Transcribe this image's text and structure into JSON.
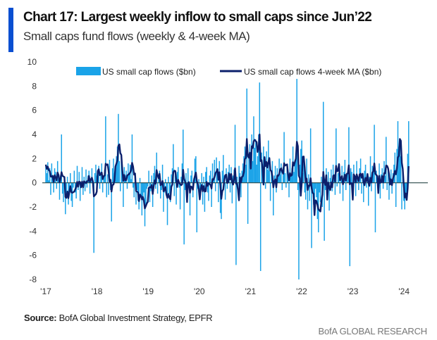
{
  "header": {
    "title": "Chart 17: Largest weekly inflow to small caps since Jun’22",
    "subtitle": "Small caps fund flows (weekly & 4-week MA)"
  },
  "footer": {
    "source_label": "Source:",
    "source_text": " BofA Global Investment Strategy, EPFR",
    "brand": "BofA GLOBAL RESEARCH"
  },
  "colors": {
    "accent": "#0a4fd1",
    "bars": "#1aa3e8",
    "ma_line": "#0b1f6b",
    "zero_line": "#2a4a4a"
  },
  "chart_data": {
    "type": "bar",
    "title": "",
    "xlabel": "",
    "ylabel": "",
    "ylim": [
      -8,
      10
    ],
    "yticks": [
      "10",
      "8",
      "6",
      "4",
      "2",
      "0",
      "-2",
      "-4",
      "-6",
      "-8"
    ],
    "xticks": [
      "'17",
      "'18",
      "'19",
      "'20",
      "'21",
      "'22",
      "'23",
      "'24"
    ],
    "x_start": "2017-01",
    "frequency": "weekly",
    "grid": false,
    "legend_placement": "top",
    "series": [
      {
        "name": "US small cap flows ($bn)",
        "type": "bar",
        "values": [
          1.5,
          0.8,
          1.7,
          0.2,
          1.2,
          -1.0,
          1.6,
          0.5,
          -0.8,
          1.2,
          0.9,
          -0.5,
          1.8,
          0.3,
          -1.4,
          0.6,
          4.0,
          -0.9,
          -1.6,
          0.4,
          -2.6,
          -1.2,
          0.5,
          -1.8,
          -0.6,
          0.8,
          -1.5,
          -2.0,
          -0.4,
          1.0,
          -0.8,
          -1.3,
          1.4,
          -0.6,
          0.9,
          -1.5,
          -0.3,
          1.3,
          -1.0,
          0.5,
          -0.7,
          1.1,
          -0.4,
          0.6,
          1.0,
          -0.9,
          0.4,
          1.2,
          -0.3,
          -5.8,
          0.8,
          1.5,
          0.6,
          1.0,
          1.4,
          -0.5,
          0.9,
          1.6,
          -0.8,
          0.5,
          1.1,
          5.5,
          -1.2,
          0.7,
          -1.0,
          1.9,
          -0.6,
          -3.2,
          1.2,
          2.0,
          0.8,
          1.4,
          2.2,
          3.0,
          5.7,
          1.8,
          -0.7,
          2.4,
          0.9,
          -2.0,
          1.3,
          0.6,
          1.0,
          -0.5,
          1.6,
          0.8,
          1.5,
          0.3,
          4.0,
          -0.4,
          -1.2,
          0.7,
          -1.8,
          -0.6,
          -1.5,
          -2.2,
          0.4,
          -1.0,
          -2.7,
          -1.4,
          -0.8,
          -3.6,
          -1.9,
          -0.5,
          -0.3,
          1.0,
          -1.6,
          -0.7,
          0.6,
          -2.0,
          0.8,
          1.4,
          -0.5,
          2.5,
          -0.9,
          0.4,
          1.0,
          -1.3,
          -0.6,
          1.5,
          -2.4,
          -0.8,
          0.3,
          -1.0,
          -3.5,
          0.5,
          -0.9,
          -1.6,
          0.7,
          1.2,
          3.2,
          -1.1,
          0.6,
          -1.8,
          0.9,
          1.3,
          -0.4,
          -2.2,
          0.5,
          1.6,
          4.4,
          -5.1,
          -0.6,
          0.8,
          -1.5,
          1.2,
          -0.3,
          -2.7,
          0.6,
          1.0,
          -1.2,
          0.4,
          2.0,
          2.2,
          -4.1,
          -0.5,
          0.3,
          -1.2,
          -0.6,
          0.8,
          -1.8,
          0.5,
          -2.4,
          0.9,
          1.3,
          -0.8,
          -1.5,
          0.6,
          1.0,
          -2.0,
          1.6,
          0.4,
          1.9,
          -0.7,
          2.1,
          1.2,
          -1.6,
          1.8,
          -2.5,
          -3.0,
          1.0,
          2.3,
          0.6,
          -1.4,
          1.2,
          -0.5,
          0.9,
          1.5,
          -0.8,
          1.3,
          -1.7,
          0.6,
          1.1,
          4.8,
          -6.8,
          0.5,
          -0.9,
          1.4,
          0.8,
          -1.2,
          1.0,
          1.6,
          2.2,
          3.0,
          1.5,
          7.8,
          -3.4,
          2.4,
          3.2,
          2.5,
          4.0,
          1.8,
          5.5,
          2.9,
          3.6,
          1.5,
          2.2,
          4.0,
          8.3,
          -7.3,
          2.5,
          1.2,
          3.0,
          1.8,
          -0.5,
          2.6,
          1.1,
          3.5,
          1.0,
          -1.5,
          0.9,
          1.8,
          -2.7,
          0.6,
          1.4,
          -0.8,
          1.2,
          0.5,
          2.0,
          0.7,
          1.6,
          -0.6,
          1.3,
          4.2,
          0.8,
          -0.4,
          1.5,
          0.9,
          -1.2,
          2.0,
          0.6,
          1.2,
          3.0,
          0.9,
          1.8,
          2.3,
          8.6,
          -0.6,
          -8.0,
          1.5,
          2.8,
          3.5,
          0.8,
          1.6,
          -0.8,
          -1.4,
          2.0,
          -2.2,
          0.7,
          -1.5,
          4.5,
          -5.4,
          -0.9,
          -1.8,
          -2.6,
          -0.5,
          -1.2,
          -3.0,
          -4.1,
          -0.8,
          -1.6,
          0.5,
          -2.0,
          6.7,
          -4.8,
          -0.6,
          1.2,
          -1.4,
          0.9,
          -2.3,
          0.4,
          1.1,
          -0.7,
          1.5,
          0.6,
          -1.0,
          4.5,
          -0.3,
          0.8,
          1.2,
          -0.9,
          0.5,
          1.4,
          -1.5,
          0.9,
          1.9,
          -0.6,
          0.8,
          1.0,
          4.6,
          -6.9,
          1.2,
          0.9,
          -0.8,
          1.5,
          0.6,
          -1.1,
          1.8,
          0.4,
          -0.6,
          1.2,
          2.0,
          -0.9,
          0.7,
          -1.6,
          1.0,
          1.5,
          -0.4,
          0.8,
          -1.9,
          0.5,
          2.2,
          -0.7,
          1.4,
          0.9,
          4.8,
          -4.1,
          1.0,
          0.5,
          -0.8,
          1.6,
          -1.3,
          0.7,
          1.2,
          -0.5,
          1.8,
          0.6,
          3.8,
          -0.6,
          1.0,
          -1.4,
          0.4,
          1.1,
          -0.9,
          0.8,
          1.5,
          2.5,
          -2.0,
          2.8,
          5.1,
          3.0,
          3.6,
          2.2,
          -2.2,
          1.0,
          -1.5,
          -2.2,
          -0.8,
          -1.2,
          2.4,
          5.1
        ]
      },
      {
        "name": "US small cap flows 4-week MA ($bn)",
        "type": "line",
        "window": 4
      }
    ]
  }
}
